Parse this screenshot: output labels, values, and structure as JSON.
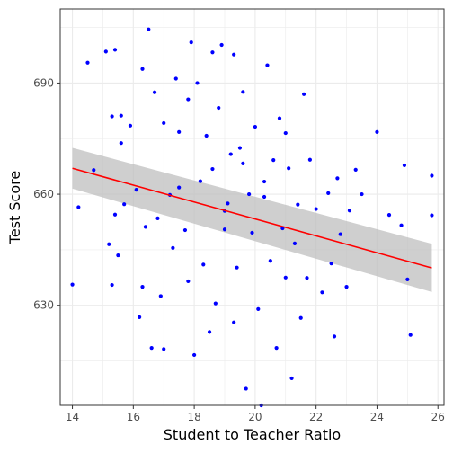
{
  "chart_data": {
    "type": "scatter",
    "title": "",
    "xlabel": "Student to Teacher Ratio",
    "ylabel": "Test Score",
    "xlim": [
      13.6,
      26.2
    ],
    "ylim": [
      603,
      710
    ],
    "x_ticks": [
      14,
      16,
      18,
      20,
      22,
      24,
      26
    ],
    "y_ticks": [
      630,
      660,
      690
    ],
    "grid": true,
    "legend": "none",
    "colors": {
      "points": "#0000ff",
      "fit_line": "#ff0000",
      "confidence_band": "#bfbfbf",
      "panel_border": "#333333",
      "grid": "#ebebeb"
    },
    "fit": {
      "method": "linear",
      "x_range": [
        14,
        25.8
      ],
      "y_at_start": 667.0,
      "y_at_end": 640.1,
      "band_half_width_at_start": 5.5,
      "band_half_width_at_end": 6.5
    },
    "points": [
      [
        14.0,
        635.6
      ],
      [
        14.2,
        656.5
      ],
      [
        14.5,
        695.5
      ],
      [
        14.7,
        666.5
      ],
      [
        15.1,
        698.5
      ],
      [
        15.2,
        646.5
      ],
      [
        15.3,
        681.0
      ],
      [
        15.3,
        635.5
      ],
      [
        15.4,
        699.0
      ],
      [
        15.4,
        654.5
      ],
      [
        15.5,
        643.5
      ],
      [
        15.6,
        681.2
      ],
      [
        15.6,
        673.8
      ],
      [
        15.7,
        657.3
      ],
      [
        15.9,
        678.5
      ],
      [
        16.1,
        661.2
      ],
      [
        16.2,
        626.8
      ],
      [
        16.3,
        693.8
      ],
      [
        16.3,
        635.0
      ],
      [
        16.4,
        651.2
      ],
      [
        16.5,
        704.5
      ],
      [
        16.6,
        618.5
      ],
      [
        16.7,
        687.5
      ],
      [
        16.8,
        653.5
      ],
      [
        16.9,
        632.5
      ],
      [
        17.0,
        618.2
      ],
      [
        17.0,
        679.2
      ],
      [
        17.2,
        659.8
      ],
      [
        17.3,
        645.5
      ],
      [
        17.4,
        691.2
      ],
      [
        17.5,
        676.8
      ],
      [
        17.7,
        650.3
      ],
      [
        17.8,
        685.6
      ],
      [
        17.8,
        636.5
      ],
      [
        17.9,
        701.0
      ],
      [
        18.0,
        616.6
      ],
      [
        18.1,
        690.0
      ],
      [
        18.2,
        663.5
      ],
      [
        18.3,
        641.0
      ],
      [
        18.5,
        622.8
      ],
      [
        18.6,
        698.3
      ],
      [
        18.6,
        666.8
      ],
      [
        18.7,
        630.5
      ],
      [
        18.8,
        683.3
      ],
      [
        18.9,
        700.3
      ],
      [
        19.0,
        650.5
      ],
      [
        19.1,
        657.5
      ],
      [
        19.2,
        670.8
      ],
      [
        19.3,
        697.7
      ],
      [
        19.3,
        625.4
      ],
      [
        19.4,
        640.2
      ],
      [
        19.5,
        672.5
      ],
      [
        19.6,
        687.6
      ],
      [
        19.7,
        607.5
      ],
      [
        19.8,
        660.0
      ],
      [
        19.9,
        649.6
      ],
      [
        20.0,
        678.2
      ],
      [
        20.1,
        629.0
      ],
      [
        20.2,
        603.0
      ],
      [
        20.3,
        659.3
      ],
      [
        20.4,
        694.8
      ],
      [
        20.5,
        642.0
      ],
      [
        20.6,
        669.2
      ],
      [
        20.7,
        618.5
      ],
      [
        20.8,
        680.5
      ],
      [
        20.9,
        650.8
      ],
      [
        21.0,
        637.5
      ],
      [
        21.1,
        667.0
      ],
      [
        21.2,
        610.3
      ],
      [
        21.3,
        646.7
      ],
      [
        21.4,
        657.2
      ],
      [
        21.5,
        626.6
      ],
      [
        21.6,
        687.0
      ],
      [
        21.7,
        637.4
      ],
      [
        21.8,
        669.3
      ],
      [
        22.0,
        656.0
      ],
      [
        22.2,
        633.5
      ],
      [
        22.4,
        660.3
      ],
      [
        22.5,
        641.3
      ],
      [
        22.6,
        621.6
      ],
      [
        22.7,
        664.3
      ],
      [
        22.8,
        649.2
      ],
      [
        23.0,
        635.0
      ],
      [
        23.1,
        655.6
      ],
      [
        23.3,
        666.6
      ],
      [
        23.5,
        660.0
      ],
      [
        24.0,
        676.8
      ],
      [
        24.4,
        654.4
      ],
      [
        24.8,
        651.6
      ],
      [
        24.9,
        667.8
      ],
      [
        25.0,
        637.0
      ],
      [
        25.1,
        622.0
      ],
      [
        25.8,
        665.0
      ],
      [
        25.8,
        654.3
      ],
      [
        17.5,
        661.8
      ],
      [
        18.4,
        675.8
      ],
      [
        19.0,
        655.5
      ],
      [
        19.6,
        668.3
      ],
      [
        20.3,
        663.4
      ],
      [
        21.0,
        676.5
      ]
    ]
  }
}
